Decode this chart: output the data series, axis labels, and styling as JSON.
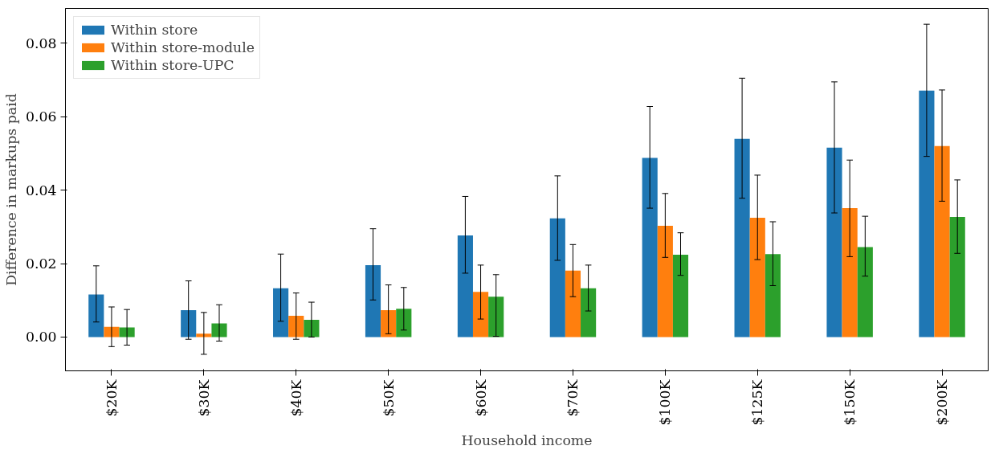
{
  "chart_data": {
    "type": "bar",
    "xlabel": "Household income",
    "ylabel": "Difference in markups paid",
    "categories": [
      "$20K",
      "$30K",
      "$40K",
      "$50K",
      "$60K",
      "$70K",
      "$100K",
      "$125K",
      "$150K",
      "$200K"
    ],
    "series": [
      {
        "name": "Within store",
        "color": "#1f77b4",
        "values": [
          0.0116,
          0.0073,
          0.0133,
          0.0196,
          0.0277,
          0.0323,
          0.0488,
          0.054,
          0.0516,
          0.0671
        ],
        "errors": [
          [
            0.0041,
            0.0194
          ],
          [
            -0.0006,
            0.0153
          ],
          [
            0.0043,
            0.0226
          ],
          [
            0.0101,
            0.0295
          ],
          [
            0.0174,
            0.0383
          ],
          [
            0.0209,
            0.0439
          ],
          [
            0.0351,
            0.0628
          ],
          [
            0.0378,
            0.0705
          ],
          [
            0.0338,
            0.0695
          ],
          [
            0.0492,
            0.0852
          ]
        ]
      },
      {
        "name": "Within store-module",
        "color": "#ff7f0e",
        "values": [
          0.0028,
          0.0009,
          0.0058,
          0.0073,
          0.0123,
          0.0181,
          0.0303,
          0.0325,
          0.0351,
          0.052
        ],
        "errors": [
          [
            -0.0026,
            0.0082
          ],
          [
            -0.0047,
            0.0067
          ],
          [
            -0.0006,
            0.012
          ],
          [
            0.0009,
            0.0142
          ],
          [
            0.0049,
            0.0196
          ],
          [
            0.011,
            0.0252
          ],
          [
            0.0217,
            0.0391
          ],
          [
            0.0211,
            0.0441
          ],
          [
            0.0219,
            0.0482
          ],
          [
            0.037,
            0.0673
          ]
        ]
      },
      {
        "name": "Within store-UPC",
        "color": "#2ca02c",
        "values": [
          0.0026,
          0.0037,
          0.0047,
          0.0077,
          0.011,
          0.0133,
          0.0224,
          0.0226,
          0.0245,
          0.0327
        ],
        "errors": [
          [
            -0.0022,
            0.0075
          ],
          [
            -0.0011,
            0.0088
          ],
          [
            0.0,
            0.0095
          ],
          [
            0.0019,
            0.0135
          ],
          [
            0.0002,
            0.017
          ],
          [
            0.0071,
            0.0196
          ],
          [
            0.0168,
            0.0284
          ],
          [
            0.014,
            0.0314
          ],
          [
            0.0166,
            0.0329
          ],
          [
            0.0228,
            0.0428
          ]
        ]
      }
    ],
    "ylim": [
      -0.0092,
      0.0895
    ],
    "yticks": [
      {
        "value": 0,
        "label": "0.00"
      },
      {
        "value": 0.02,
        "label": "0.02"
      },
      {
        "value": 0.04,
        "label": "0.04"
      },
      {
        "value": 0.06,
        "label": "0.06"
      },
      {
        "value": 0.08,
        "label": "0.08"
      }
    ],
    "legend": "top left",
    "grid": false
  }
}
